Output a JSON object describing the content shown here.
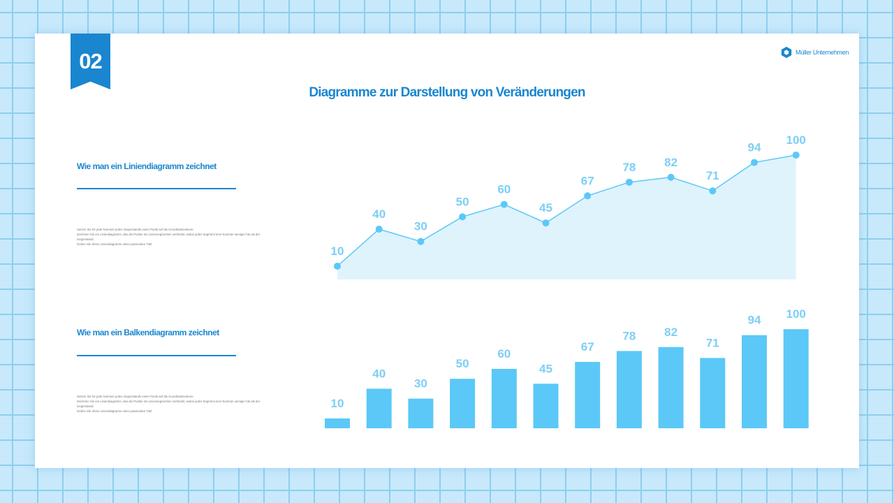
{
  "badge": {
    "number": "02"
  },
  "logo": {
    "text": "Müller Unternehmen",
    "icon": "hexagon-aperture-icon"
  },
  "title": "Diagramme zur Darstellung von Veränderungen",
  "sections": [
    {
      "heading": "Wie man ein Liniendiagramm zeichnet",
      "lines": [
        "Setzen Sie für jede Nummer jedes Gegenstands einen Punkt auf die Koordinatenebene.",
        "Zeichnen Sie ein Liniendiagramm, das die Punkte mit Liniensegmenten verbindet, wobei jedes Segment eine Nummer weniger hat als der Gegenstand.",
        "Geben Sie Ihrem Liniendiagramm einen passenden Titel."
      ]
    },
    {
      "heading": "Wie man ein Balkendiagramm zeichnet",
      "lines": [
        "Setzen Sie für jede Nummer jedes Gegenstands einen Punkt auf die Koordinatenebene.",
        "Zeichnen Sie ein Liniendiagramm, das die Punkte mit Liniensegmenten verbindet, wobei jedes Segment eine Nummer weniger hat als der Gegenstand.",
        "Geben Sie Ihrem Liniendiagramm einen passenden Titel."
      ]
    }
  ],
  "colors": {
    "accent": "#1a86cf",
    "chart": "#5bc8f7",
    "area": "#dff3fd"
  },
  "chart_data": [
    {
      "type": "area",
      "values": [
        10,
        40,
        30,
        50,
        60,
        45,
        67,
        78,
        82,
        71,
        94,
        100
      ],
      "data_labels": true,
      "grid": false
    },
    {
      "type": "bar",
      "values": [
        10,
        40,
        30,
        50,
        60,
        45,
        67,
        78,
        82,
        71,
        94,
        100
      ],
      "data_labels": true,
      "grid": false
    }
  ]
}
